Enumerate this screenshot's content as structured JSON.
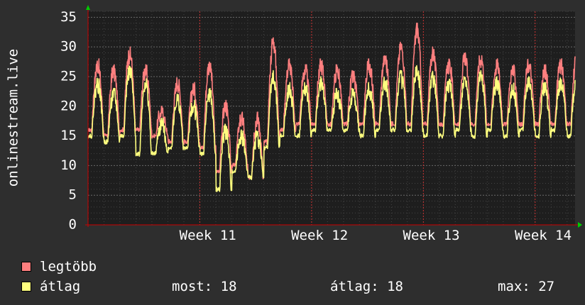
{
  "chart_data": {
    "type": "line",
    "ylabel": "onlinestream.live",
    "ylim": [
      0,
      36
    ],
    "y_ticks": [
      0,
      5,
      10,
      15,
      20,
      25,
      30,
      35
    ],
    "x_ticks": [
      {
        "label": "Week 11",
        "day": 7
      },
      {
        "label": "Week 12",
        "day": 14
      },
      {
        "label": "Week 13",
        "day": 21
      },
      {
        "label": "Week 14",
        "day": 28
      }
    ],
    "x_range_days": [
      0,
      30.5
    ],
    "grid": true,
    "colors": {
      "max": "#ff7f7f",
      "avg": "#ffff7f",
      "background": "#2e2e2e",
      "plot": "#1e1e1e",
      "grid": "#555555",
      "axis": "#cc0000"
    },
    "series": [
      {
        "name": "legtöbb",
        "color": "#ff7f7f",
        "daily_peaks": [
          27,
          26,
          29,
          26,
          19,
          24,
          23,
          27,
          20,
          18,
          18,
          31,
          27,
          26,
          27,
          26,
          25,
          27,
          28,
          30,
          33,
          29,
          27,
          28,
          28,
          27,
          26,
          27,
          26,
          27,
          28,
          27
        ],
        "daily_lows": [
          16,
          15,
          16,
          16,
          15,
          14,
          14,
          13,
          9,
          10,
          8,
          14,
          16,
          17,
          17,
          17,
          17,
          17,
          17,
          17,
          17,
          17,
          17,
          17,
          17,
          17,
          17,
          17,
          17,
          17,
          17,
          17
        ]
      },
      {
        "name": "átlag",
        "color": "#ffff7f",
        "daily_peaks": [
          24,
          22,
          26,
          24,
          17,
          21,
          20,
          22,
          16,
          15,
          15,
          25,
          23,
          23,
          24,
          22,
          22,
          23,
          24,
          25,
          26,
          25,
          24,
          24,
          25,
          24,
          23,
          24,
          23,
          24,
          25,
          24
        ],
        "daily_lows": [
          15,
          14,
          15,
          12,
          12,
          13,
          13,
          12,
          6,
          9,
          8,
          13,
          15,
          15,
          16,
          16,
          16,
          15,
          16,
          16,
          16,
          15,
          15,
          16,
          15,
          16,
          15,
          16,
          15,
          16,
          15,
          16
        ]
      }
    ]
  },
  "legend": {
    "max_label": "legtöbb",
    "avg_label": "átlag",
    "now_text": "most: 18",
    "avg_text": "átlag: 18",
    "max_text": "max: 27"
  }
}
